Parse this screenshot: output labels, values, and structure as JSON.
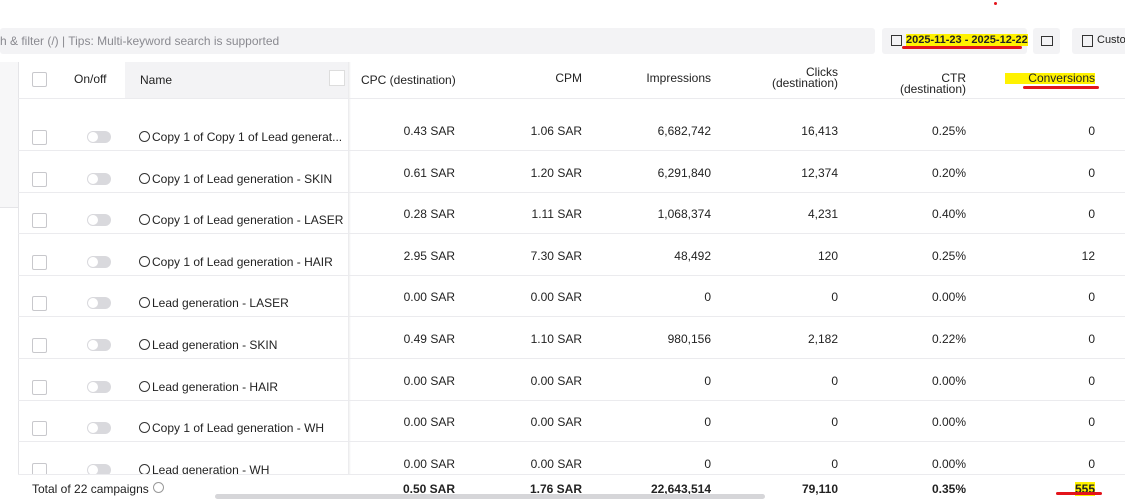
{
  "toolbar": {
    "search_placeholder": "h & filter (/) | Tips: Multi-keyword search is supported",
    "date_range": "2025-11-23 - 2025-12-22",
    "custom_button": "Custo"
  },
  "table": {
    "headers": [
      "On/off",
      "Name",
      "CPC (destination)",
      "CPM",
      "Impressions",
      "Clicks (destination)",
      "CTR (destination)",
      "Conversions"
    ],
    "rows": [
      [
        "Copy 1 of Copy 1 of Lead generat...",
        "0.43 SAR",
        "1.06 SAR",
        "6,682,742",
        "16,413",
        "0.25%",
        "0"
      ],
      [
        "Copy 1 of Lead generation - SKIN",
        "0.61 SAR",
        "1.20 SAR",
        "6,291,840",
        "12,374",
        "0.20%",
        "0"
      ],
      [
        "Copy 1 of Lead generation - LASER",
        "0.28 SAR",
        "1.11 SAR",
        "1,068,374",
        "4,231",
        "0.40%",
        "0"
      ],
      [
        "Copy 1 of Lead generation - HAIR",
        "2.95 SAR",
        "7.30 SAR",
        "48,492",
        "120",
        "0.25%",
        "12"
      ],
      [
        "Lead generation - LASER",
        "0.00 SAR",
        "0.00 SAR",
        "0",
        "0",
        "0.00%",
        "0"
      ],
      [
        "Lead generation - SKIN",
        "0.49 SAR",
        "1.10 SAR",
        "980,156",
        "2,182",
        "0.22%",
        "0"
      ],
      [
        "Lead generation - HAIR",
        "0.00 SAR",
        "0.00 SAR",
        "0",
        "0",
        "0.00%",
        "0"
      ],
      [
        "Copy 1 of Lead generation - WH",
        "0.00 SAR",
        "0.00 SAR",
        "0",
        "0",
        "0.00%",
        "0"
      ],
      [
        "Lead generation - WH",
        "0.00 SAR",
        "0.00 SAR",
        "0",
        "0",
        "0.00%",
        "0"
      ]
    ],
    "footer": {
      "label": "Total of 22 campaigns",
      "totals": [
        "0.50 SAR",
        "1.76 SAR",
        "22,643,514",
        "79,110",
        "0.35%",
        "555"
      ]
    }
  }
}
